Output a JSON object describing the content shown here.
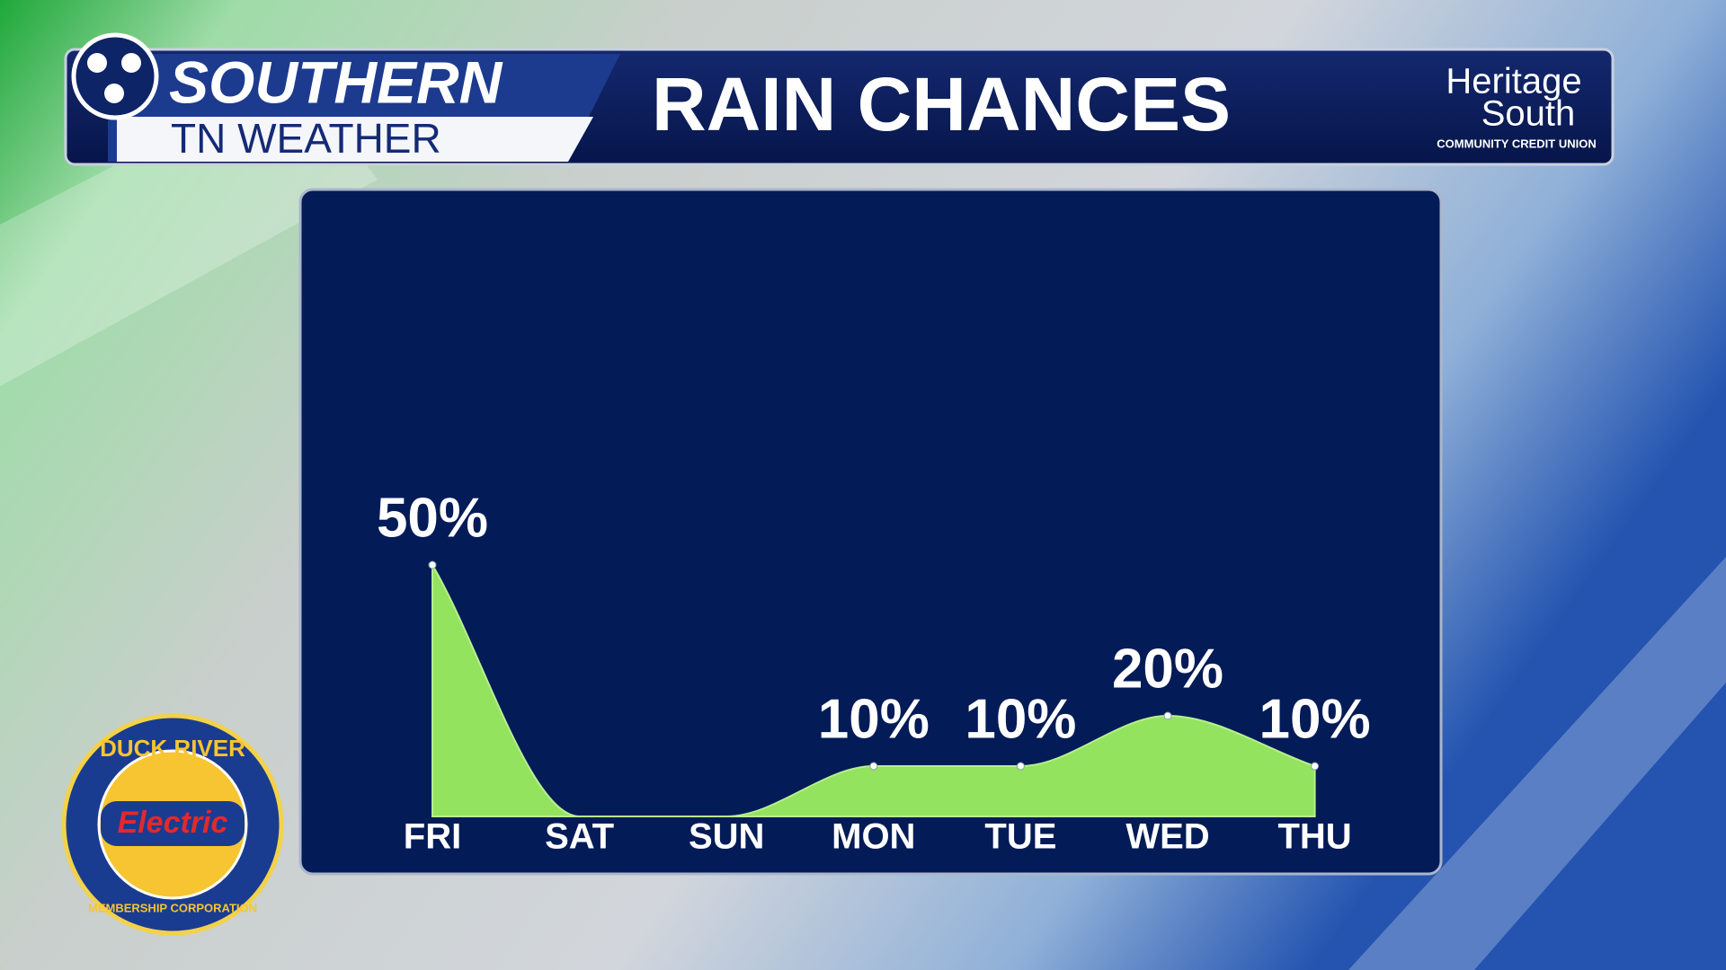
{
  "branding": {
    "show_name": "SOUTHERN",
    "show_subname": "TN WEATHER",
    "sponsor_name_1": "Heritage",
    "sponsor_name_2": "South",
    "sponsor_tagline": "COMMUNITY CREDIT UNION",
    "logo_top": "DUCK RIVER",
    "logo_middle": "Electric",
    "logo_bottom": "MEMBERSHIP CORPORATION"
  },
  "chart_data": {
    "type": "area",
    "title": "RAIN CHANCES",
    "categories": [
      "FRI",
      "SAT",
      "SUN",
      "MON",
      "TUE",
      "WED",
      "THU"
    ],
    "values": [
      50,
      0,
      0,
      10,
      10,
      20,
      10
    ],
    "value_labels": [
      "50%",
      null,
      null,
      "10%",
      "10%",
      "20%",
      "10%"
    ],
    "color": "#93e35f"
  }
}
